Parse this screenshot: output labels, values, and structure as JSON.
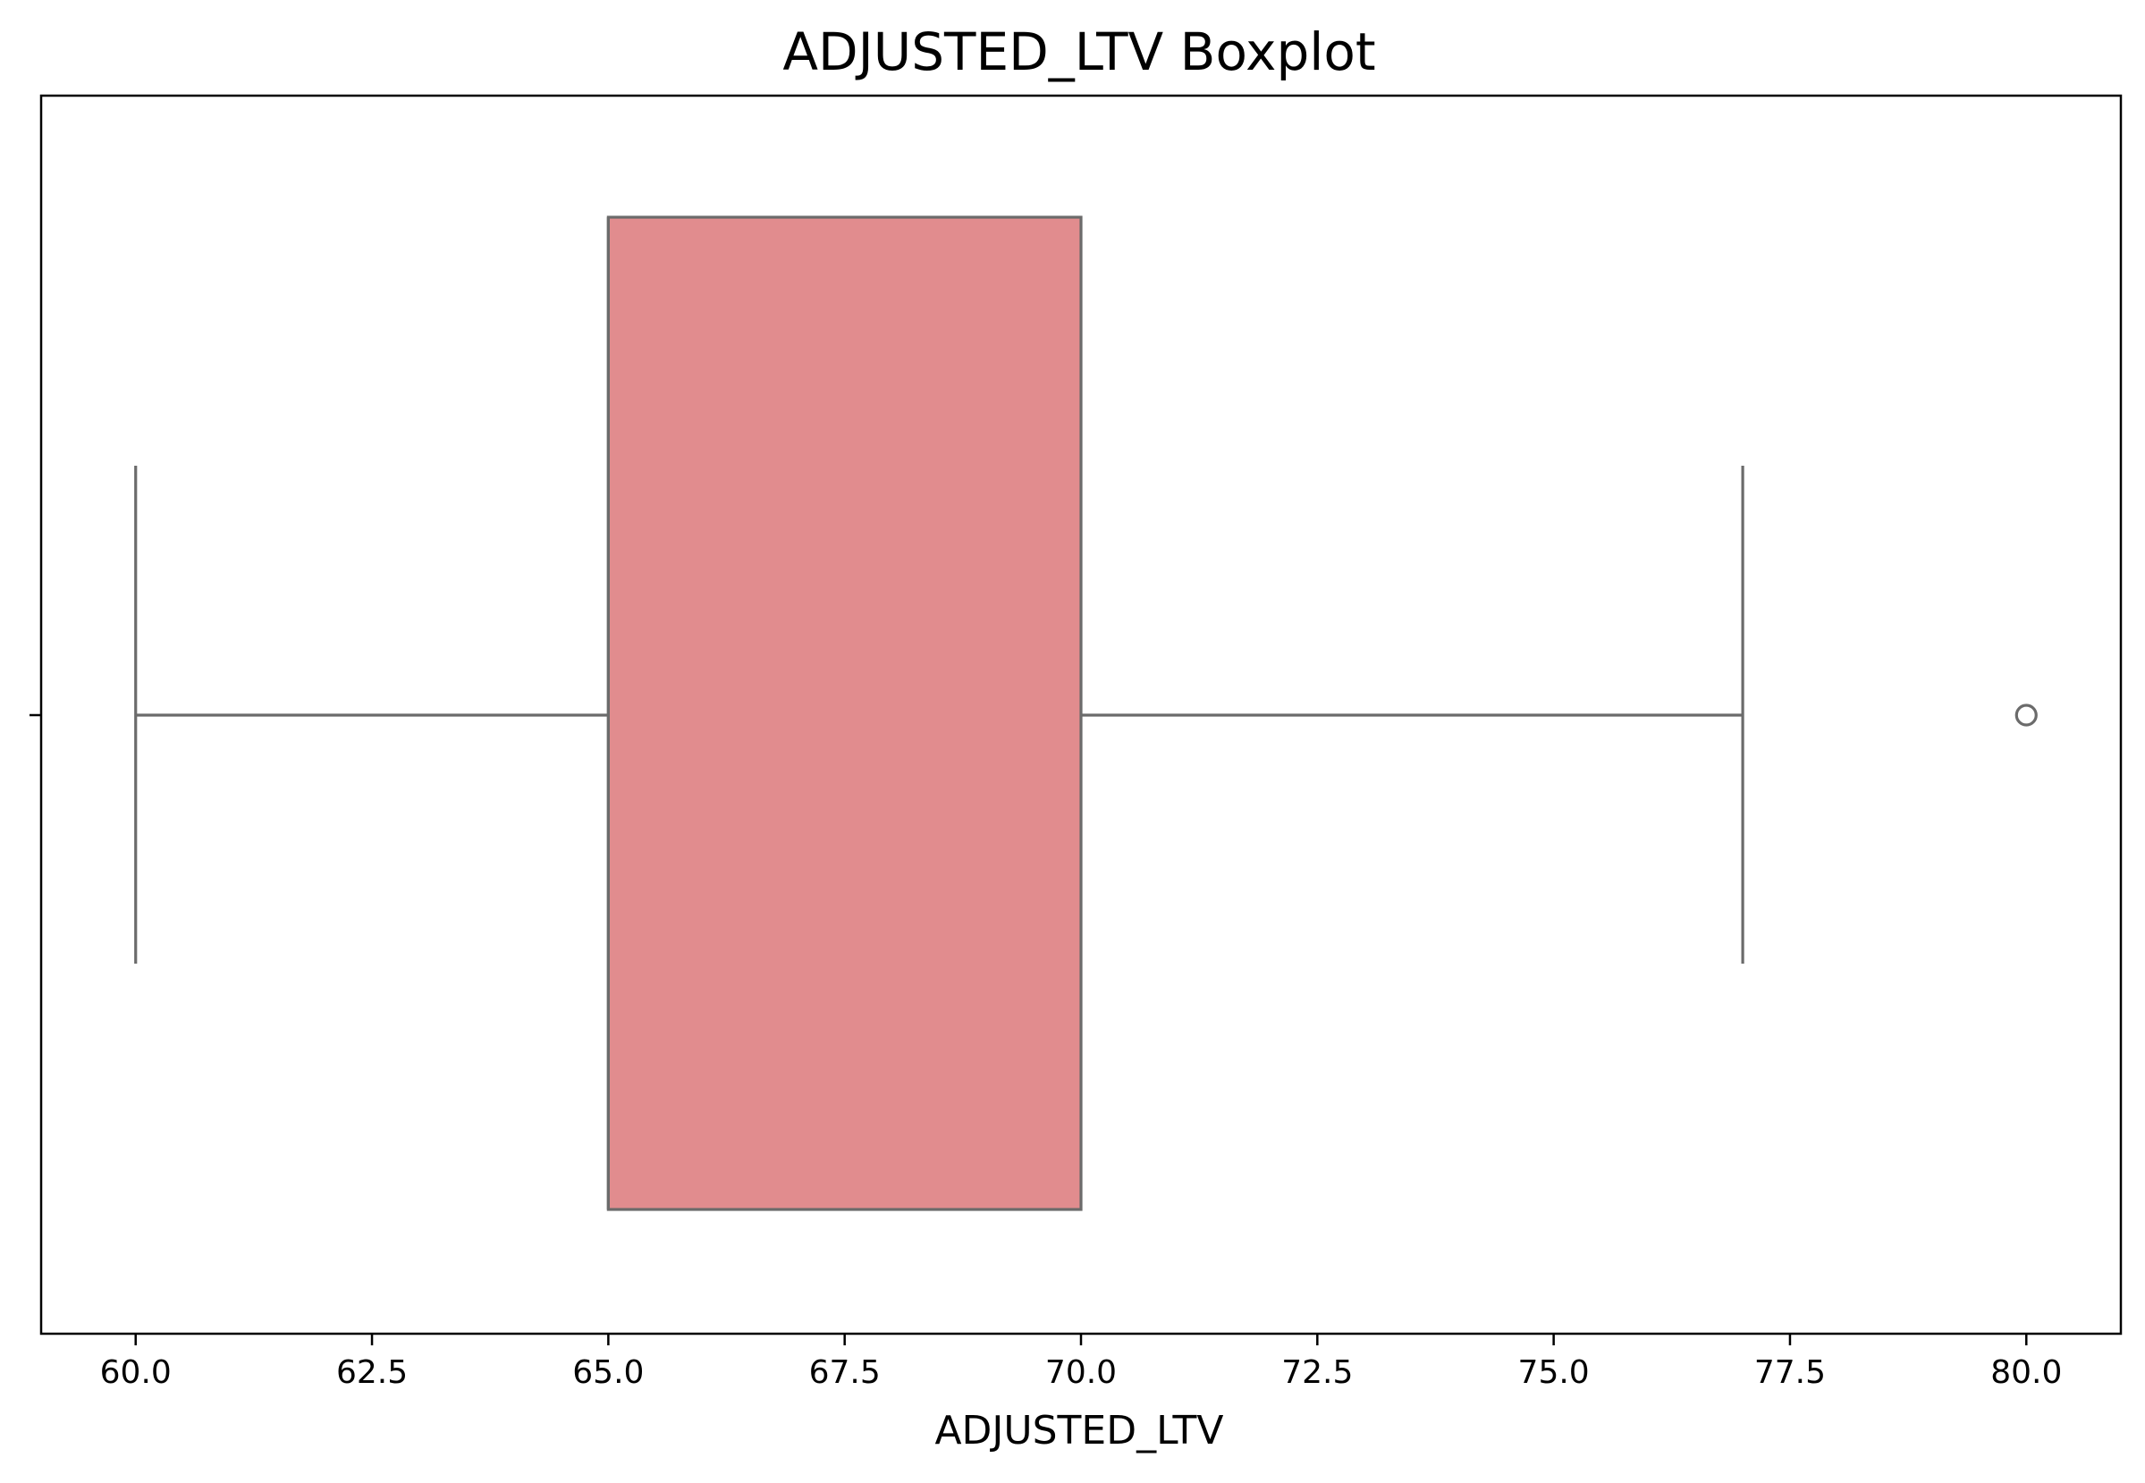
{
  "chart_data": {
    "type": "boxplot",
    "title": "ADJUSTED_LTV Boxplot",
    "xlabel": "ADJUSTED_LTV",
    "ylabel": "",
    "orientation": "horizontal",
    "xlim": [
      59.0,
      81.0
    ],
    "xticks": [
      60.0,
      62.5,
      65.0,
      67.5,
      70.0,
      72.5,
      75.0,
      77.5,
      80.0
    ],
    "xtick_labels": [
      "60.0",
      "62.5",
      "65.0",
      "67.5",
      "70.0",
      "72.5",
      "75.0",
      "77.5",
      "80.0"
    ],
    "grid": false,
    "box": {
      "whisker_low": 60.0,
      "q1": 65.0,
      "median": 65.0,
      "q3": 70.0,
      "whisker_high": 77.0,
      "outliers": [
        80.0
      ]
    },
    "colors": {
      "box_fill": "#e18c8e",
      "line": "#6b6b6b",
      "axes": "#000000"
    }
  }
}
